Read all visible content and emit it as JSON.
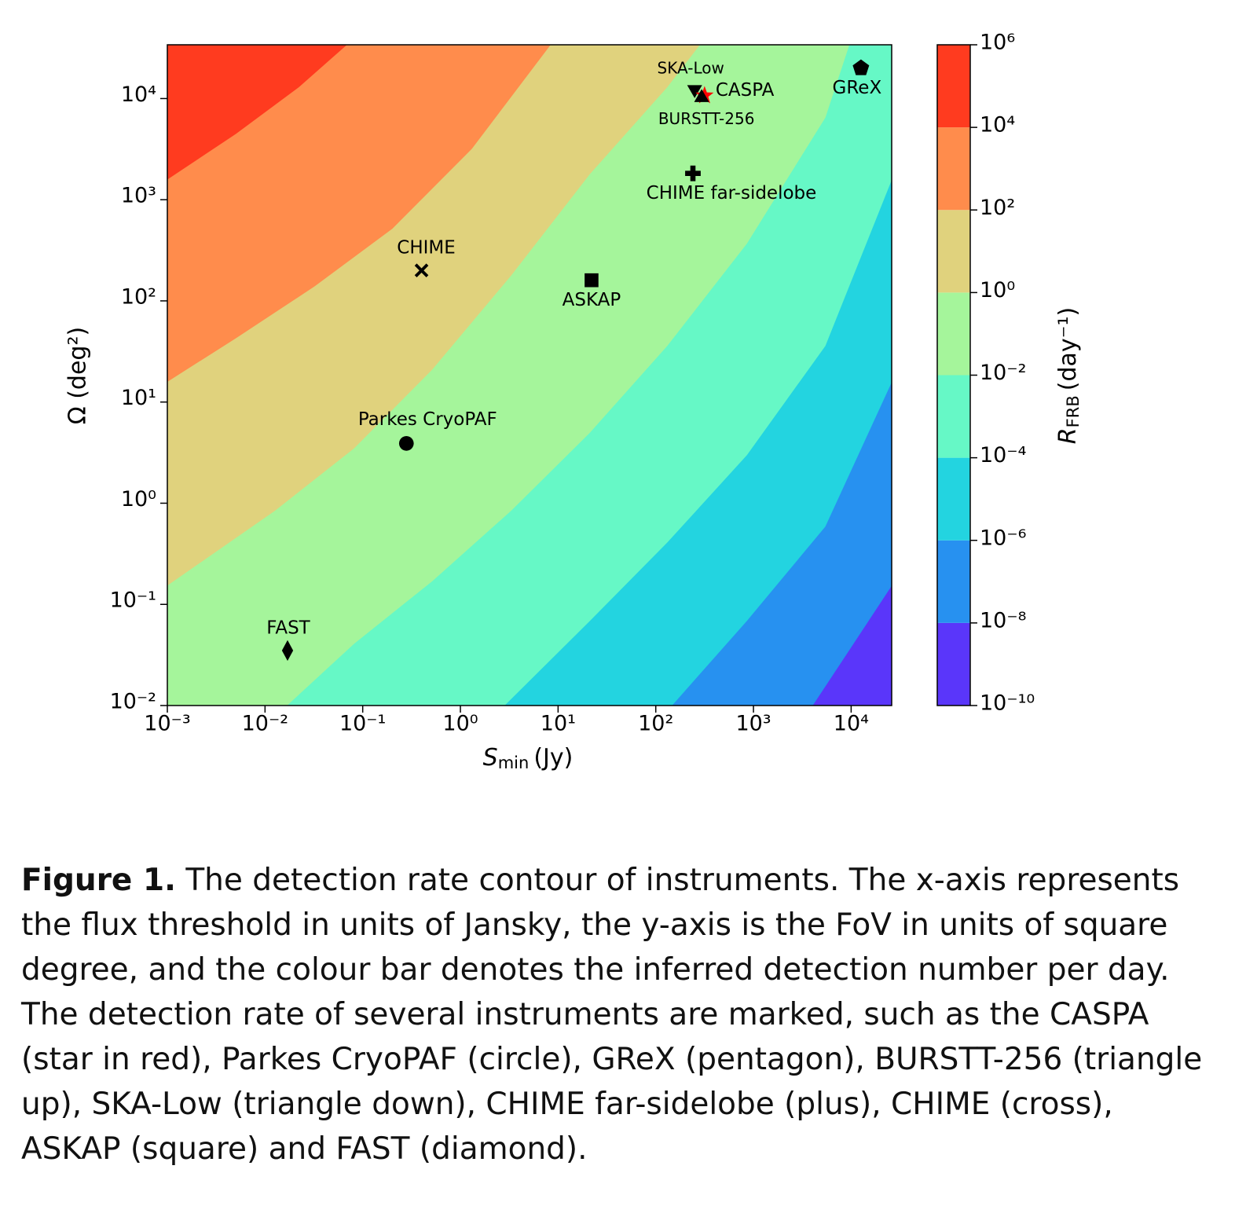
{
  "chart_data": {
    "type": "contour",
    "xlabel": {
      "symbol": "S",
      "subscript": "min",
      "unit": "(Jy)"
    },
    "ylabel": "Ω (deg²)",
    "colorbar_label": {
      "symbol": "R",
      "subscript": "FRB",
      "unit": "(day⁻¹)"
    },
    "xscale": "log",
    "yscale": "log",
    "xlim": [
      0.001,
      26000
    ],
    "ylim": [
      0.01,
      34000
    ],
    "xticks": [
      {
        "value": 0.001,
        "label": "10⁻³"
      },
      {
        "value": 0.01,
        "label": "10⁻²"
      },
      {
        "value": 0.1,
        "label": "10⁻¹"
      },
      {
        "value": 1,
        "label": "10⁰"
      },
      {
        "value": 10,
        "label": "10¹"
      },
      {
        "value": 100,
        "label": "10²"
      },
      {
        "value": 1000,
        "label": "10³"
      },
      {
        "value": 10000,
        "label": "10⁴"
      }
    ],
    "yticks": [
      {
        "value": 0.01,
        "label": "10⁻²"
      },
      {
        "value": 0.1,
        "label": "10⁻¹"
      },
      {
        "value": 1,
        "label": "10⁰"
      },
      {
        "value": 10,
        "label": "10¹"
      },
      {
        "value": 100,
        "label": "10²"
      },
      {
        "value": 1000,
        "label": "10³"
      },
      {
        "value": 10000,
        "label": "10⁴"
      }
    ],
    "levels": [
      {
        "value": 1e-10,
        "label": "10⁻¹⁰"
      },
      {
        "value": 1e-08,
        "label": "10⁻⁸"
      },
      {
        "value": 1e-06,
        "label": "10⁻⁶"
      },
      {
        "value": 0.0001,
        "label": "10⁻⁴"
      },
      {
        "value": 0.01,
        "label": "10⁻²"
      },
      {
        "value": 1,
        "label": "10⁰"
      },
      {
        "value": 100,
        "label": "10²"
      },
      {
        "value": 10000,
        "label": "10⁴"
      },
      {
        "value": 1000000,
        "label": "10⁶"
      }
    ],
    "colors": [
      "#5a36fa",
      "#2791f0",
      "#23d4e0",
      "#66f8c6",
      "#a5f59b",
      "#e0d27d",
      "#ff8c4c",
      "#ff3b1f"
    ],
    "contours": [
      {
        "level": 1e-08,
        "x": [
          4000,
          10500,
          26000
        ],
        "y": [
          0.01,
          0.041,
          0.155
        ]
      },
      {
        "level": 1e-06,
        "x": [
          145,
          850,
          5400,
          26000
        ],
        "y": [
          0.01,
          0.069,
          0.59,
          16
        ]
      },
      {
        "level": 0.0001,
        "x": [
          2.8,
          21,
          130,
          850,
          5400,
          26000
        ],
        "y": [
          0.01,
          0.069,
          0.41,
          3,
          36,
          1600
        ]
      },
      {
        "level": 0.01,
        "x": [
          0.0166,
          0.081,
          0.51,
          3.3,
          21,
          130,
          850,
          5400,
          9500
        ],
        "y": [
          0.01,
          0.041,
          0.17,
          0.85,
          5,
          36,
          370,
          6500,
          34000
        ]
      },
      {
        "level": 1,
        "x": [
          0.001,
          0.0126,
          0.081,
          0.51,
          3.3,
          21,
          130,
          280
        ],
        "y": [
          0.155,
          0.85,
          3.5,
          21,
          180,
          1800,
          13000,
          34000
        ]
      },
      {
        "level": 100,
        "x": [
          0.001,
          0.005,
          0.032,
          0.2,
          1.3,
          8.3
        ],
        "y": [
          16,
          43,
          140,
          520,
          3200,
          34000
        ]
      },
      {
        "level": 10000,
        "x": [
          0.001,
          0.005,
          0.022,
          0.068
        ],
        "y": [
          1600,
          4500,
          13000,
          34000
        ]
      }
    ],
    "instruments": [
      {
        "name": "SKA-Low",
        "marker": "triangle-down",
        "color": "#000000",
        "x": 250,
        "y": 12300
      },
      {
        "name": "CASPA",
        "marker": "star",
        "color": "#ff0000",
        "x": 316,
        "y": 10700
      },
      {
        "name": "BURSTT-256",
        "marker": "triangle-up",
        "color": "#000000",
        "x": 295,
        "y": 10200
      },
      {
        "name": "GReX",
        "marker": "pentagon",
        "color": "#000000",
        "x": 12600,
        "y": 20000
      },
      {
        "name": "CHIME far-sidelobe",
        "marker": "plus",
        "color": "#000000",
        "x": 240,
        "y": 1820
      },
      {
        "name": "CHIME",
        "marker": "cross",
        "color": "#000000",
        "x": 0.4,
        "y": 200
      },
      {
        "name": "ASKAP",
        "marker": "square",
        "color": "#000000",
        "x": 22,
        "y": 160
      },
      {
        "name": "Parkes CryoPAF",
        "marker": "circle",
        "color": "#000000",
        "x": 0.28,
        "y": 3.9
      },
      {
        "name": "FAST",
        "marker": "diamond",
        "color": "#000000",
        "x": 0.017,
        "y": 0.035
      }
    ]
  },
  "caption": {
    "label": "Figure 1.",
    "text": "The detection rate contour of instruments. The x-axis represents the flux threshold in units of Jansky, the y-axis is the FoV in units of square degree, and the colour bar denotes the inferred detection number per day. The detection rate of several instruments are marked, such as the CASPA (star in red), Parkes CryoPAF (circle), GReX (pentagon), BURSTT-256 (triangle up), SKA-Low (triangle down), CHIME far-sidelobe (plus), CHIME (cross), ASKAP (square) and FAST (diamond)."
  }
}
